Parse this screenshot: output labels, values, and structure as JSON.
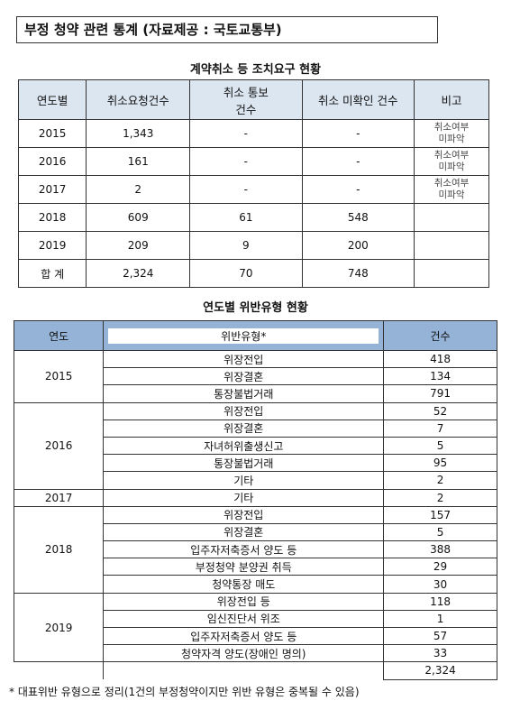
{
  "header": {
    "title": "부정 청약 관련 통계 (자료제공 : 국토교통부)"
  },
  "table1": {
    "title": "계약취소 등 조치요구 현황",
    "columns": [
      "연도별",
      "취소요청건수",
      "취소 통보\n건수",
      "취소 미확인 건수",
      "비고"
    ],
    "rows": [
      [
        "2015",
        "1,343",
        "-",
        "-",
        "취소여부\n미파악"
      ],
      [
        "2016",
        "161",
        "-",
        "-",
        "취소여부\n미파악"
      ],
      [
        "2017",
        "2",
        "-",
        "-",
        "취소여부\n미파악"
      ],
      [
        "2018",
        "609",
        "61",
        "548"
      ],
      [
        "2019",
        "209",
        "9",
        "200"
      ],
      [
        "합 계",
        "2,324",
        "70",
        "748"
      ]
    ]
  },
  "table2": {
    "title": "연도별 위반유형 현황",
    "columns": [
      "연도",
      "위반유형*",
      "건수"
    ],
    "groups": [
      {
        "year": "2015",
        "items": [
          {
            "type": "위장전입",
            "count": "418"
          },
          {
            "type": "위장결혼",
            "count": "134"
          },
          {
            "type": "통장불법거래",
            "count": "791"
          }
        ]
      },
      {
        "year": "2016",
        "items": [
          {
            "type": "위장전입",
            "count": "52"
          },
          {
            "type": "위장결혼",
            "count": "7"
          },
          {
            "type": "자녀허위출생신고",
            "count": "5"
          },
          {
            "type": "통장불법거래",
            "count": "95"
          },
          {
            "type": "기타",
            "count": "2"
          }
        ]
      },
      {
        "year": "2017",
        "items": [
          {
            "type": "기타",
            "count": "2"
          }
        ]
      },
      {
        "year": "2018",
        "items": [
          {
            "type": "위장전입",
            "count": "157"
          },
          {
            "type": "위장결혼",
            "count": "5"
          },
          {
            "type": "입주자저축증서 양도 등",
            "count": "388"
          },
          {
            "type": "부정청약 분양권 취득",
            "count": "29"
          },
          {
            "type": "청약통장 매도",
            "count": "30"
          }
        ]
      },
      {
        "year": "2019",
        "items": [
          {
            "type": "위장전입 등",
            "count": "118"
          },
          {
            "type": "임신진단서 위조",
            "count": "1"
          },
          {
            "type": "입주자저축증서 양도 등",
            "count": "57"
          },
          {
            "type": "청약자격 양도(장애인 명의)",
            "count": "33"
          }
        ]
      }
    ],
    "total": "2,324"
  },
  "footnote": "* 대표위반 유형으로 정리(1건의 부정청약이지만 위반 유형은 중복될 수 있음)"
}
